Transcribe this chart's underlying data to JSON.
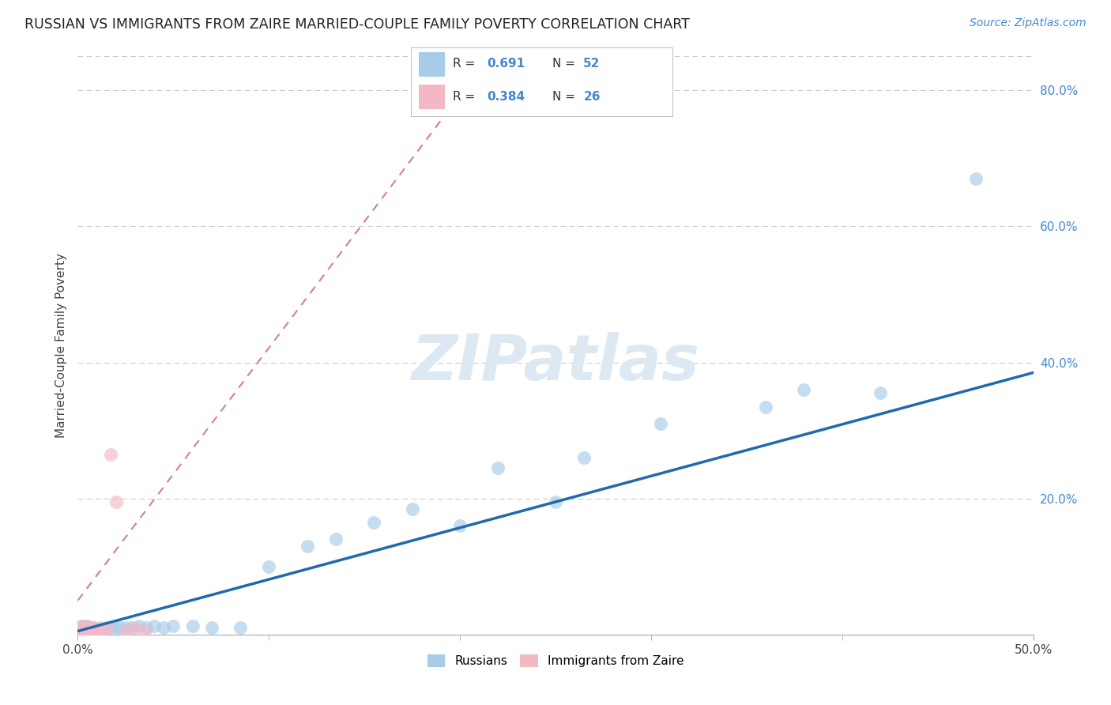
{
  "title": "RUSSIAN VS IMMIGRANTS FROM ZAIRE MARRIED-COUPLE FAMILY POVERTY CORRELATION CHART",
  "source": "Source: ZipAtlas.com",
  "ylabel": "Married-Couple Family Poverty",
  "xlim": [
    0.0,
    0.5
  ],
  "ylim": [
    0.0,
    0.85
  ],
  "xtick_labels_shown": [
    "0.0%",
    "50.0%"
  ],
  "xtick_values_shown": [
    0.0,
    0.5
  ],
  "ytick_labels": [
    "20.0%",
    "40.0%",
    "60.0%",
    "80.0%"
  ],
  "ytick_values": [
    0.2,
    0.4,
    0.6,
    0.8
  ],
  "R1": "0.691",
  "N1": "52",
  "R2": "0.384",
  "N2": "26",
  "blue_color": "#a8cce8",
  "pink_color": "#f4b8c4",
  "line_blue": "#1f6aad",
  "line_pink": "#d08090",
  "watermark": "ZIPatlas",
  "watermark_color": "#dce8f2",
  "legend_label1": "Russians",
  "legend_label2": "Immigrants from Zaire",
  "rus_x": [
    0.001,
    0.001,
    0.002,
    0.002,
    0.002,
    0.003,
    0.003,
    0.003,
    0.004,
    0.004,
    0.005,
    0.005,
    0.005,
    0.006,
    0.006,
    0.007,
    0.007,
    0.008,
    0.008,
    0.009,
    0.01,
    0.011,
    0.012,
    0.013,
    0.015,
    0.017,
    0.02,
    0.022,
    0.025,
    0.028,
    0.032,
    0.036,
    0.04,
    0.045,
    0.05,
    0.06,
    0.07,
    0.085,
    0.1,
    0.12,
    0.135,
    0.155,
    0.175,
    0.2,
    0.22,
    0.25,
    0.265,
    0.305,
    0.36,
    0.38,
    0.42,
    0.47
  ],
  "rus_y": [
    0.005,
    0.008,
    0.005,
    0.008,
    0.012,
    0.005,
    0.008,
    0.012,
    0.005,
    0.01,
    0.005,
    0.008,
    0.012,
    0.005,
    0.01,
    0.005,
    0.008,
    0.005,
    0.01,
    0.005,
    0.008,
    0.005,
    0.01,
    0.005,
    0.01,
    0.01,
    0.01,
    0.01,
    0.01,
    0.01,
    0.012,
    0.01,
    0.012,
    0.01,
    0.012,
    0.012,
    0.01,
    0.01,
    0.1,
    0.13,
    0.14,
    0.165,
    0.185,
    0.16,
    0.245,
    0.195,
    0.26,
    0.31,
    0.335,
    0.36,
    0.355,
    0.67
  ],
  "zaire_x": [
    0.001,
    0.001,
    0.002,
    0.002,
    0.003,
    0.003,
    0.004,
    0.004,
    0.005,
    0.005,
    0.006,
    0.006,
    0.007,
    0.008,
    0.008,
    0.009,
    0.01,
    0.011,
    0.012,
    0.013,
    0.015,
    0.017,
    0.02,
    0.025,
    0.03,
    0.035
  ],
  "zaire_y": [
    0.005,
    0.01,
    0.005,
    0.01,
    0.005,
    0.01,
    0.005,
    0.012,
    0.005,
    0.01,
    0.005,
    0.01,
    0.008,
    0.005,
    0.01,
    0.005,
    0.008,
    0.005,
    0.008,
    0.005,
    0.01,
    0.265,
    0.195,
    0.005,
    0.01,
    0.005
  ]
}
